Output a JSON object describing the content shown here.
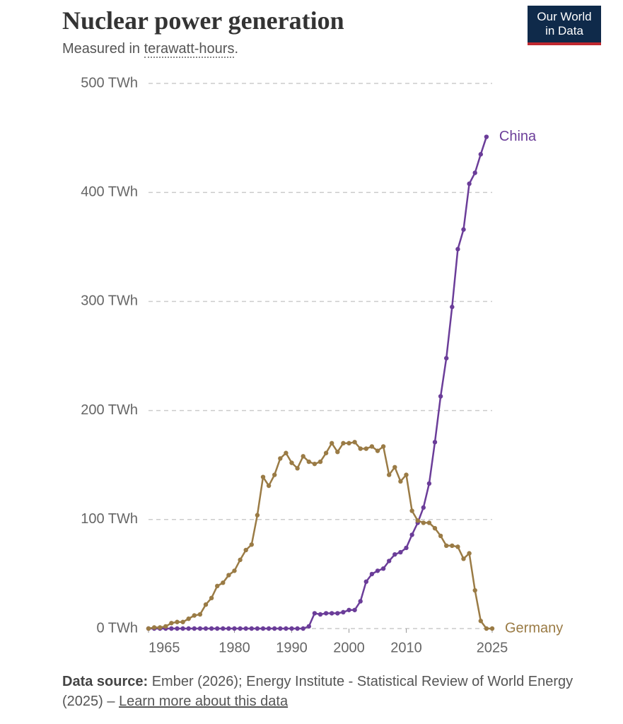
{
  "chart_data": {
    "type": "line",
    "title": "Nuclear power generation",
    "subtitle": {
      "text": "Measured in",
      "term": "terawatt-hours",
      "end": "."
    },
    "logo": [
      "Our World",
      "in Data"
    ],
    "source": {
      "label": "Data source:",
      "text": "Ember (2026); Energy Institute - Statistical Review of World Energy (2025) –",
      "link": "Learn more about this data"
    },
    "x": [
      1965,
      1966,
      1967,
      1968,
      1969,
      1970,
      1971,
      1972,
      1973,
      1974,
      1975,
      1976,
      1977,
      1978,
      1979,
      1980,
      1981,
      1982,
      1983,
      1984,
      1985,
      1986,
      1987,
      1988,
      1989,
      1990,
      1991,
      1992,
      1993,
      1994,
      1995,
      1996,
      1997,
      1998,
      1999,
      2000,
      2001,
      2002,
      2003,
      2004,
      2005,
      2006,
      2007,
      2008,
      2009,
      2010,
      2011,
      2012,
      2013,
      2014,
      2015,
      2016,
      2017,
      2018,
      2019,
      2020,
      2021,
      2022,
      2023,
      2024,
      2025
    ],
    "series": [
      {
        "name": "China",
        "color": "#6b3d99",
        "values": [
          0,
          0,
          0,
          0,
          0,
          0,
          0,
          0,
          0,
          0,
          0,
          0,
          0,
          0,
          0,
          0,
          0,
          0,
          0,
          0,
          0,
          0,
          0,
          0,
          0,
          0,
          0,
          0,
          2,
          14,
          13,
          14,
          14,
          14,
          15,
          17,
          17,
          25,
          43,
          50,
          53,
          55,
          62,
          68,
          70,
          74,
          86,
          97,
          111,
          133,
          171,
          213,
          248,
          295,
          348,
          366,
          408,
          418,
          435,
          451,
          null
        ]
      },
      {
        "name": "Germany",
        "color": "#9a7b45",
        "values": [
          0,
          1,
          1,
          2,
          5,
          6,
          6,
          9,
          12,
          13,
          22,
          28,
          39,
          42,
          49,
          53,
          63,
          72,
          77,
          104,
          139,
          131,
          141,
          156,
          161,
          152,
          147,
          158,
          153,
          151,
          153,
          161,
          170,
          162,
          170,
          170,
          171,
          165,
          165,
          167,
          163,
          167,
          141,
          148,
          135,
          141,
          108,
          99,
          97,
          97,
          92,
          85,
          76,
          76,
          75,
          64,
          69,
          35,
          7,
          0,
          0
        ]
      }
    ],
    "xlim": [
      1965,
      2025
    ],
    "xticks": [
      1965,
      1980,
      1990,
      2000,
      2010,
      2025
    ],
    "ylim": [
      0,
      500
    ],
    "yticks": [
      {
        "value": 0,
        "label": "0 TWh"
      },
      {
        "value": 100,
        "label": "100 TWh"
      },
      {
        "value": 200,
        "label": "200 TWh"
      },
      {
        "value": 300,
        "label": "300 TWh"
      },
      {
        "value": 400,
        "label": "400 TWh"
      },
      {
        "value": 500,
        "label": "500 TWh"
      }
    ],
    "grid": true
  }
}
